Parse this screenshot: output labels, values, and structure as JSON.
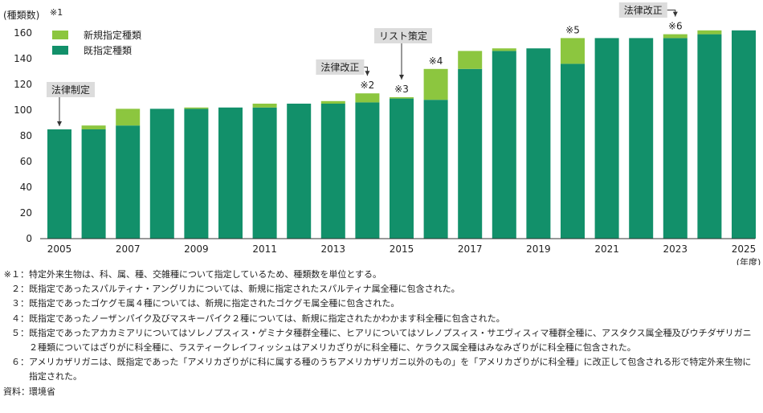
{
  "chart_data": {
    "type": "bar",
    "stacked": true,
    "ylabel": "(種類数)",
    "ylabel_note": "※1",
    "xunit": "(年度)",
    "ylim": [
      0,
      160
    ],
    "yticks": [
      0,
      20,
      40,
      60,
      80,
      100,
      120,
      140,
      160
    ],
    "xtick_labels": [
      "2005",
      "2007",
      "2009",
      "2011",
      "2013",
      "2015",
      "2017",
      "2019",
      "2021",
      "2023",
      "2025"
    ],
    "categories": [
      "2005",
      "2006",
      "2007",
      "2008",
      "2009",
      "2010",
      "2011",
      "2012",
      "2013",
      "2014",
      "2015",
      "2016",
      "2017",
      "2018",
      "2019",
      "2020",
      "2021",
      "2022",
      "2023",
      "2024",
      "2025"
    ],
    "series": [
      {
        "name": "既指定種類",
        "color": "#12906a",
        "values": [
          85,
          85,
          88,
          101,
          101,
          102,
          102,
          105,
          105,
          106,
          109,
          108,
          132,
          146,
          148,
          136,
          156,
          156,
          156,
          159,
          162
        ]
      },
      {
        "name": "新規指定種類",
        "color": "#8cc63f",
        "values": [
          0,
          3,
          13,
          0,
          1,
          0,
          3,
          0,
          2,
          7,
          1,
          24,
          14,
          2,
          0,
          20,
          0,
          0,
          3,
          3,
          0
        ]
      }
    ],
    "legend_position": "top-left",
    "bar_marks": [
      {
        "category": "2014",
        "text": "※2"
      },
      {
        "category": "2015",
        "text": "※3"
      },
      {
        "category": "2016",
        "text": "※4"
      },
      {
        "category": "2020",
        "text": "※5"
      },
      {
        "category": "2023",
        "text": "※6"
      }
    ],
    "callouts": [
      {
        "category": "2005",
        "text": "法律制定"
      },
      {
        "category": "2014",
        "text": "法律改正"
      },
      {
        "category": "2015",
        "text": "リスト策定"
      },
      {
        "category": "2023",
        "text": "法律改正"
      }
    ]
  },
  "notes": [
    {
      "mark": "※１：",
      "text": "特定外来生物は、科、属、種、交雑種について指定しているため、種類数を単位とする。"
    },
    {
      "mark": "２：",
      "text": "既指定であったスパルティナ・アングリカについては、新規に指定されたスパルティナ属全種に包含された。"
    },
    {
      "mark": "３：",
      "text": "既指定であったゴケグモ属４種については、新規に指定されたゴケグモ属全種に包含された。"
    },
    {
      "mark": "４：",
      "text": "既指定であったノーザンパイク及びマスキーパイク２種については、新規に指定されたかわかます科全種に包含された。"
    },
    {
      "mark": "５：",
      "text": "既指定であったアカカミアリについてはソレノプスィス・ゲミナタ種群全種に、ヒアリについてはソレノプスィス・サエヴィスィマ種群全種に、アスタクス属全種及びウチダザリガニ２種類についてはざりがに科全種に、ラスティークレイフィッシュはアメリカざりがに科全種に、ケラクス属全種はみなみざりがに科全種に包含された。"
    },
    {
      "mark": "６：",
      "text": "アメリカザリガニは、既指定であった「アメリカざりがに科に属する種のうちアメリカザリガニ以外のもの」を「アメリカざりがに科全種」に改正して包含される形で特定外来生物に指定された。"
    }
  ],
  "source": {
    "mark": "資料：",
    "text": "環境省"
  },
  "colors": {
    "callout_box": "#dcdcdc",
    "axis": "#333333"
  }
}
